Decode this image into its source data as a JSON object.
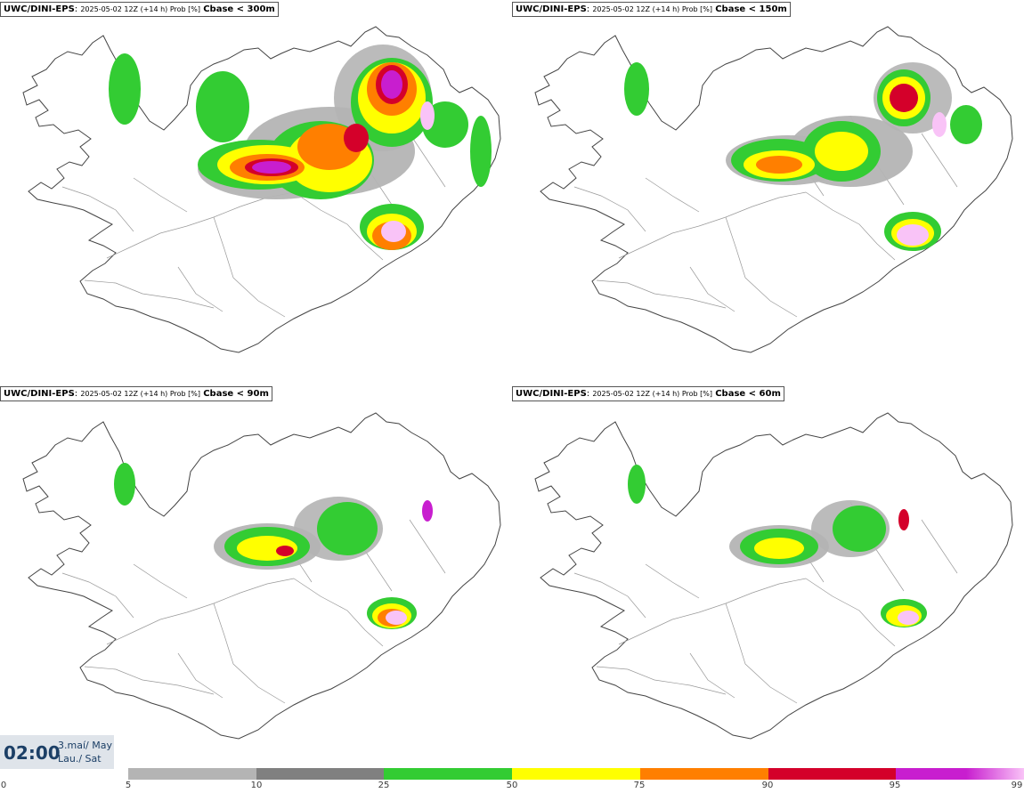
{
  "panels": [
    {
      "model": "UWC/DINI-EPS",
      "meta": "2025-05-02 12Z (+14 h) Prob [%]",
      "param": "Cbase < 300m"
    },
    {
      "model": "UWC/DINI-EPS",
      "meta": "2025-05-02 12Z (+14 h) Prob [%]",
      "param": "Cbase < 150m"
    },
    {
      "model": "UWC/DINI-EPS",
      "meta": "2025-05-02 12Z (+14 h) Prob [%]",
      "param": "Cbase < 90m"
    },
    {
      "model": "UWC/DINI-EPS",
      "meta": "2025-05-02 12Z (+14 h) Prob [%]",
      "param": "Cbase < 60m"
    }
  ],
  "time": {
    "value": "02:00",
    "date_is": "3.maí/ May",
    "day": "Lau./ Sat"
  },
  "legend": {
    "ticks": [
      "0",
      "5",
      "10",
      "25",
      "50",
      "75",
      "90",
      "95",
      "99"
    ],
    "colors": [
      "#b4b4b4",
      "#808080",
      "#33cc33",
      "#ffff00",
      "#ff7f00",
      "#d4002a",
      "#c81ecf",
      "#f9c3f7"
    ]
  }
}
